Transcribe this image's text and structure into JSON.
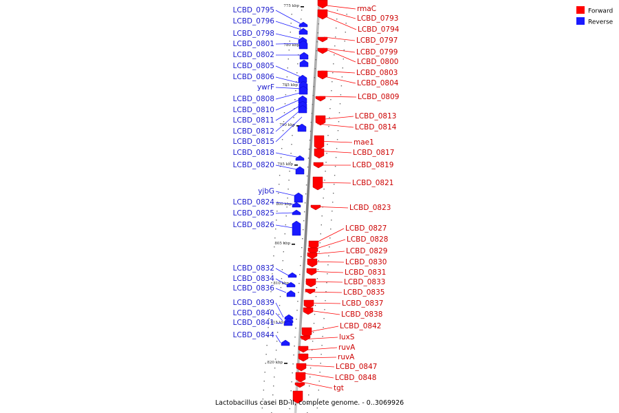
{
  "caption": "Lactobacillus casei BD-II, complete genome. - 0..3069926",
  "legend": {
    "forward": {
      "label": "Forward",
      "color": "#ff0000"
    },
    "reverse": {
      "label": "Reverse",
      "color": "#1a1aff"
    }
  },
  "ticks": [
    "775 kbp",
    "780 kbp",
    "785 kbp",
    "790 kbp",
    "795 kbp",
    "800 kbp",
    "805 kbp",
    "810 kbp",
    "815 kbp",
    "820 kbp"
  ],
  "reverse_genes": [
    "LCBD_0795",
    "LCBD_0796",
    "LCBD_0798",
    "LCBD_0801",
    "LCBD_0802",
    "LCBD_0805",
    "LCBD_0806",
    "ywrF",
    "LCBD_0808",
    "LCBD_0810",
    "LCBD_0811",
    "LCBD_0812",
    "LCBD_0815",
    "LCBD_0818",
    "LCBD_0820",
    "yjbG",
    "LCBD_0824",
    "LCBD_0825",
    "LCBD_0826",
    "LCBD_0832",
    "LCBD_0834",
    "LCBD_0836",
    "LCBD_0839",
    "LCBD_0840",
    "LCBD_0841",
    "LCBD_0844"
  ],
  "forward_genes": [
    "rmaC",
    "LCBD_0793",
    "LCBD_0794",
    "LCBD_0797",
    "LCBD_0799",
    "LCBD_0800",
    "LCBD_0803",
    "LCBD_0804",
    "LCBD_0809",
    "LCBD_0813",
    "LCBD_0814",
    "mae1",
    "LCBD_0817",
    "LCBD_0819",
    "LCBD_0821",
    "LCBD_0823",
    "LCBD_0827",
    "LCBD_0828",
    "LCBD_0829",
    "LCBD_0830",
    "LCBD_0831",
    "LCBD_0833",
    "LCBD_0835",
    "LCBD_0837",
    "LCBD_0838",
    "LCBD_0842",
    "luxS",
    "ruvA",
    "ruvA",
    "LCBD_0847",
    "LCBD_0848",
    "tgt"
  ]
}
